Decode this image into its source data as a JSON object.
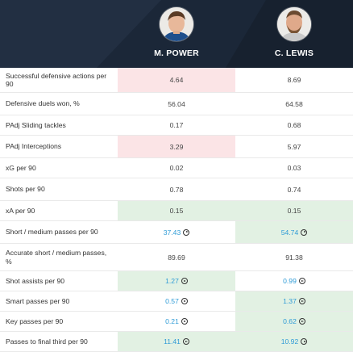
{
  "players": [
    {
      "name": "M. POWER",
      "icon": "player-photo-icon"
    },
    {
      "name": "C. LEWIS",
      "icon": "player-photo-icon"
    }
  ],
  "colors": {
    "header_bg": "#1b2738",
    "better_bg": "#e2f1e3",
    "worse_bg": "#fbe4e6",
    "link": "#2e9bd6"
  },
  "rows": [
    {
      "label": "Successful defensive actions per 90",
      "v1": "4.64",
      "v2": "8.69",
      "v1_bg": "red",
      "v2_bg": "",
      "v1_link": false,
      "v2_link": false
    },
    {
      "label": "Defensive duels won, %",
      "v1": "56.04",
      "v2": "64.58",
      "v1_bg": "",
      "v2_bg": "",
      "v1_link": false,
      "v2_link": false
    },
    {
      "label": "PAdj Sliding tackles",
      "v1": "0.17",
      "v2": "0.68",
      "v1_bg": "",
      "v2_bg": "",
      "v1_link": false,
      "v2_link": false
    },
    {
      "label": "PAdj Interceptions",
      "v1": "3.29",
      "v2": "5.97",
      "v1_bg": "red",
      "v2_bg": "",
      "v1_link": false,
      "v2_link": false
    },
    {
      "label": "xG per 90",
      "v1": "0.02",
      "v2": "0.03",
      "v1_bg": "",
      "v2_bg": "",
      "v1_link": false,
      "v2_link": false
    },
    {
      "label": "Shots per 90",
      "v1": "0.78",
      "v2": "0.74",
      "v1_bg": "",
      "v2_bg": "",
      "v1_link": false,
      "v2_link": false
    },
    {
      "label": "xA per 90",
      "v1": "0.15",
      "v2": "0.15",
      "v1_bg": "green",
      "v2_bg": "green",
      "v1_link": false,
      "v2_link": false
    },
    {
      "label": "Short / medium passes per 90",
      "v1": "37.43",
      "v2": "54.74",
      "v1_bg": "",
      "v2_bg": "green",
      "v1_link": true,
      "v2_link": true
    },
    {
      "label": "Accurate short / medium passes, %",
      "v1": "89.69",
      "v2": "91.38",
      "v1_bg": "",
      "v2_bg": "",
      "v1_link": false,
      "v2_link": false
    },
    {
      "label": "Shot assists per 90",
      "v1": "1.27",
      "v2": "0.99",
      "v1_bg": "green",
      "v2_bg": "",
      "v1_link": true,
      "v2_link": true
    },
    {
      "label": "Smart passes per 90",
      "v1": "0.57",
      "v2": "1.37",
      "v1_bg": "",
      "v2_bg": "green",
      "v1_link": true,
      "v2_link": true
    },
    {
      "label": "Key passes per 90",
      "v1": "0.21",
      "v2": "0.62",
      "v1_bg": "",
      "v2_bg": "green",
      "v1_link": true,
      "v2_link": true
    },
    {
      "label": "Passes to final third per 90",
      "v1": "11.41",
      "v2": "10.92",
      "v1_bg": "green",
      "v2_bg": "green",
      "v1_link": true,
      "v2_link": true
    }
  ]
}
